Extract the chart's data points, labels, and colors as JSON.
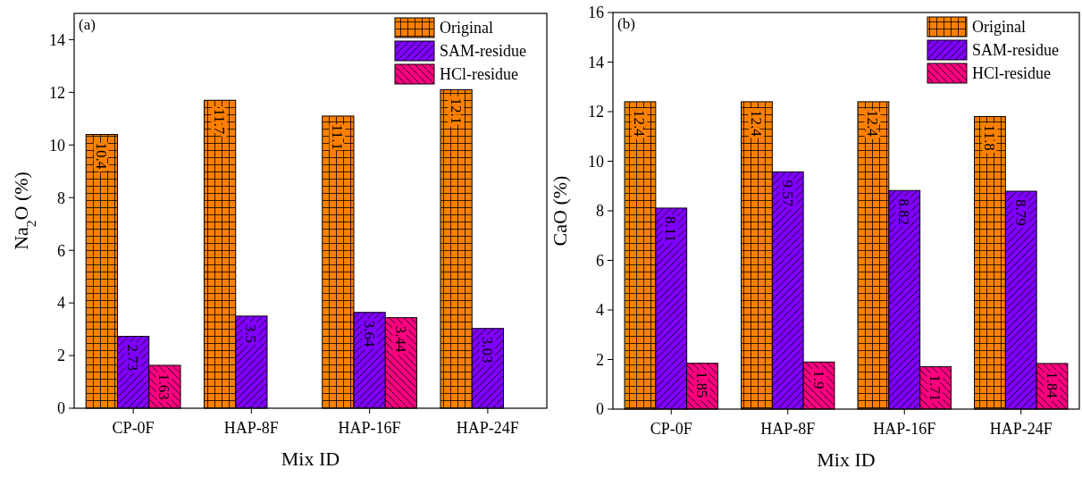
{
  "chart_data": [
    {
      "type": "bar",
      "title": "(a)",
      "xlabel": "Mix ID",
      "ylabel": "Na$_{2}$O (%)",
      "categories": [
        "CP-0F",
        "HAP-8F",
        "HAP-16F",
        "HAP-24F"
      ],
      "series": [
        {
          "name": "Original",
          "color": "#ff8000",
          "values": [
            10.4,
            11.7,
            11.1,
            12.1
          ]
        },
        {
          "name": "SAM-residue",
          "color": "#8000ff",
          "values": [
            2.73,
            3.5,
            3.64,
            3.03
          ]
        },
        {
          "name": "HCl-residue",
          "color": "#ff0080",
          "values": [
            1.63,
            null,
            3.44,
            null
          ]
        }
      ],
      "ylim": [
        0,
        15
      ],
      "yticks": [
        0,
        2,
        4,
        6,
        8,
        10,
        12,
        14
      ],
      "grid": false,
      "legend": "top right",
      "data_labels": true
    },
    {
      "type": "bar",
      "title": "(b)",
      "xlabel": "Mix ID",
      "ylabel": "CaO (%)",
      "categories": [
        "CP-0F",
        "HAP-8F",
        "HAP-16F",
        "HAP-24F"
      ],
      "series": [
        {
          "name": "Original",
          "color": "#ff8000",
          "values": [
            12.4,
            12.4,
            12.4,
            11.8
          ]
        },
        {
          "name": "SAM-residue",
          "color": "#8000ff",
          "values": [
            8.11,
            9.57,
            8.82,
            8.79
          ]
        },
        {
          "name": "HCl-residue",
          "color": "#ff0080",
          "values": [
            1.85,
            1.9,
            1.71,
            1.84
          ]
        }
      ],
      "ylim": [
        0,
        16
      ],
      "yticks": [
        0,
        2,
        4,
        6,
        8,
        10,
        12,
        14,
        16
      ],
      "grid": false,
      "legend": "top right",
      "data_labels": true
    }
  ]
}
